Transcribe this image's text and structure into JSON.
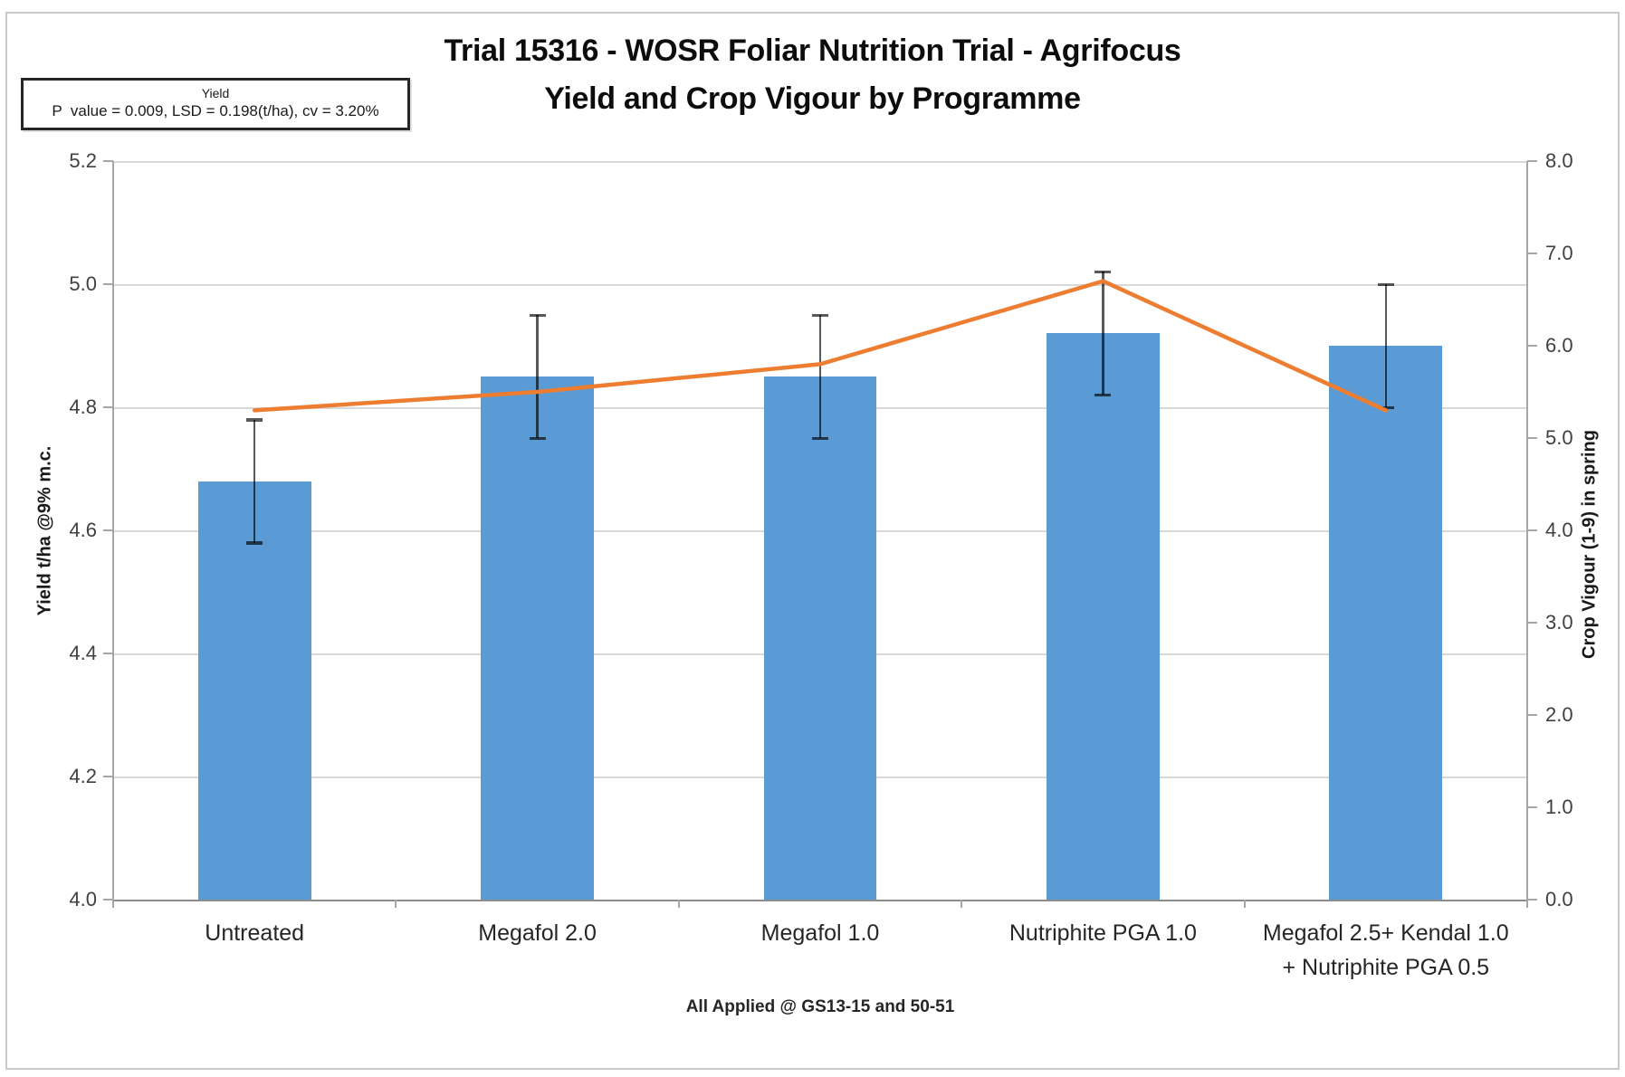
{
  "title": {
    "line1": "Trial 15316 - WOSR Foliar Nutrition Trial - Agrifocus",
    "line2": "Yield and Crop Vigour by Programme"
  },
  "annotation_box": {
    "title": "Yield",
    "stats": "P  value = 0.009, LSD = 0.198(t/ha), cv = 3.20%"
  },
  "chart_data": {
    "type": "bar",
    "combo": [
      "bar",
      "line"
    ],
    "title": "Trial 15316 - WOSR Foliar Nutrition Trial - Agrifocus — Yield and Crop Vigour by Programme",
    "categories": [
      "Untreated",
      "Megafol 2.0",
      "Megafol 1.0",
      "Nutriphite PGA 1.0",
      "Megafol  2.5+ Kendal 1.0\n+ Nutriphite PGA 0.5"
    ],
    "series": [
      {
        "name": "Yield",
        "type": "bar",
        "axis": "left",
        "color": "#5b9bd5",
        "values": [
          4.68,
          4.85,
          4.85,
          4.92,
          4.9
        ],
        "error_bars": [
          0.1,
          0.1,
          0.1,
          0.1,
          0.1
        ]
      },
      {
        "name": "Crop Vigour",
        "type": "line",
        "axis": "right",
        "color": "#ed7d31",
        "values": [
          5.3,
          5.5,
          5.8,
          6.7,
          5.3
        ]
      }
    ],
    "left_axis": {
      "title": "Yield t/ha @9% m.c.",
      "min": 4.0,
      "max": 5.2,
      "tick_step": 0.2,
      "tick_labels": [
        "5.2",
        "5.0",
        "4.8",
        "4.6",
        "4.4",
        "4.2",
        "4.0"
      ]
    },
    "right_axis": {
      "title": "Crop Vigour (1-9) in spring",
      "min": 0.0,
      "max": 8.0,
      "tick_step": 1.0,
      "tick_labels": [
        "8.0",
        "7.0",
        "6.0",
        "5.0",
        "4.0",
        "3.0",
        "2.0",
        "1.0",
        "0.0"
      ]
    },
    "xlabel": "All Applied @ GS13-15 and 50-51",
    "grid": true,
    "legend": "none"
  },
  "colors": {
    "bar": "#5b9bd5",
    "line": "#ed7d31",
    "gridline": "#d9d9d9",
    "axis_line": "#a6a6a6",
    "baseline": "#8c8c8c",
    "error_bar": "rgba(0,0,0,0.65)",
    "tick_text": "#404040",
    "frame_border": "#c9c9c9"
  }
}
